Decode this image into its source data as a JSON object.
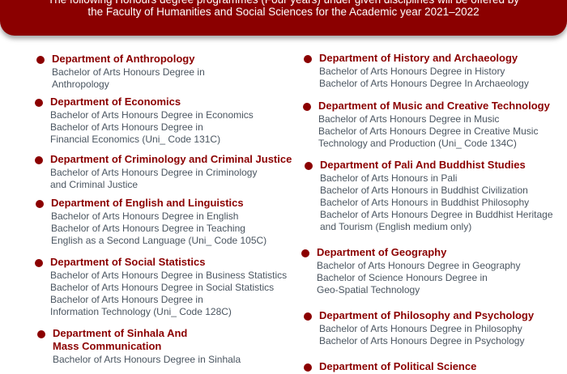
{
  "header": {
    "line1": "The following Honours degree programmes (Four years) under given disciplines will be offered by",
    "line2": "the Faculty of Humanities and Social Sciences for the Academic year 2021–2022",
    "color": "#8b0000"
  },
  "left": [
    {
      "title": "Department of Anthropology",
      "lines": [
        "Bachelor of Arts Honours Degree in",
        "Anthropology"
      ]
    },
    {
      "title": "Department of Economics",
      "lines": [
        "Bachelor of Arts Honours Degree in Economics",
        "Bachelor of Arts Honours Degree in",
        "Financial Economics (Uni_ Code 131C)"
      ]
    },
    {
      "title": "Department of Criminology and Criminal Justice",
      "lines": [
        "Bachelor of Arts Honours Degree in Criminology",
        "and Criminal Justice"
      ]
    },
    {
      "title": "Department of English and Linguistics",
      "lines": [
        "Bachelor of Arts Honours Degree in English",
        "Bachelor of Arts Honours Degree in Teaching",
        "English as a Second Language  (Uni_ Code 105C)"
      ]
    },
    {
      "title": "Department of Social Statistics",
      "lines": [
        "Bachelor of Arts Honours Degree in Business Statistics",
        "Bachelor of Arts Honours Degree in Social Statistics",
        "Bachelor of Arts Honours Degree in",
        "Information Technology (Uni_ Code 128C)"
      ]
    },
    {
      "title": "Department of Sinhala And\nMass Communication",
      "lines": [
        "Bachelor of Arts Honours Degree in Sinhala"
      ]
    }
  ],
  "right": [
    {
      "title": "Department of History and Archaeology",
      "lines": [
        "Bachelor of Arts Honours Degree in History",
        "Bachelor of Arts Honours Degree In Archaeology"
      ]
    },
    {
      "title": "Department of Music and Creative Technology",
      "lines": [
        "Bachelor of Arts Honours Degree in Music",
        "Bachelor of Arts Honours Degree in Creative Music",
        "Technology and Production (Uni_ Code 134C)"
      ]
    },
    {
      "title": "Department of Pali And Buddhist Studies",
      "lines": [
        "Bachelor of Arts Honours in Pali",
        "Bachelor of Arts Honours  in Buddhist Civilization",
        "Bachelor of Arts Honours  in Buddhist Philosophy",
        "Bachelor of Arts Honours Degree in Buddhist Heritage",
        "and Tourism (English medium only)"
      ]
    },
    {
      "title": "Department of Geography",
      "lines": [
        "Bachelor of Arts Honours Degree in Geography",
        "Bachelor of Science Honours Degree in",
        "Geo-Spatial Technology"
      ]
    },
    {
      "title": "Department of Philosophy and Psychology",
      "lines": [
        "Bachelor of Arts Honours Degree in Philosophy",
        "Bachelor of Arts Honours Degree in Psychology"
      ]
    },
    {
      "title": "Department of Political Science",
      "lines": []
    }
  ]
}
